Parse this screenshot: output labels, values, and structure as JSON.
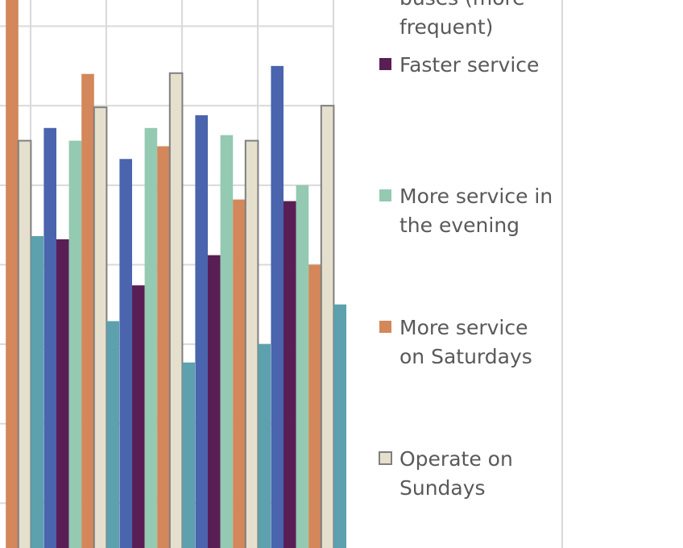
{
  "chart_data": {
    "type": "bar",
    "title": "",
    "xlabel": "",
    "ylabel": "",
    "gridlines": true,
    "legend_position": "right",
    "categories": [
      "",
      "",
      "",
      "",
      ""
    ],
    "series": [
      {
        "name": "More buses (more frequent)",
        "color": "#4a64ad",
        "values": [
          null,
          57.2,
          53.3,
          58.8,
          65.0
        ]
      },
      {
        "name": "Faster service",
        "color": "#591f55",
        "values": [
          null,
          43.2,
          37.4,
          41.2,
          48.0
        ]
      },
      {
        "name": "More service in the evening",
        "color": "#94c9b2",
        "values": [
          null,
          55.6,
          57.2,
          56.3,
          50.0
        ]
      },
      {
        "name": "More service on Saturdays",
        "color": "#d3875a",
        "values": [
          75.0,
          64.0,
          54.9,
          48.2,
          40.0
        ]
      },
      {
        "name": "Operate on Sundays",
        "color": "#e5dfcd",
        "values": [
          55.6,
          59.8,
          64.1,
          55.6,
          60.0
        ]
      },
      {
        "name": "(unlabeled series)",
        "color": "#5ca1ad",
        "values": [
          43.6,
          32.9,
          27.7,
          30.0,
          35.0
        ]
      }
    ],
    "ylim": [
      0,
      73.3
    ],
    "grid_values": [
      10,
      20,
      30,
      40,
      50,
      60,
      70
    ]
  },
  "legend": {
    "visible_entries": [
      {
        "series": 0,
        "lines": [
          "buses (more",
          "frequent)"
        ]
      },
      {
        "series": 1,
        "lines": [
          "Faster service"
        ]
      },
      {
        "series": 2,
        "lines": [
          "More service in",
          "the evening"
        ]
      },
      {
        "series": 3,
        "lines": [
          "More service",
          "on Saturdays"
        ]
      },
      {
        "series": 4,
        "lines": [
          "Operate on",
          "Sundays"
        ]
      }
    ]
  }
}
